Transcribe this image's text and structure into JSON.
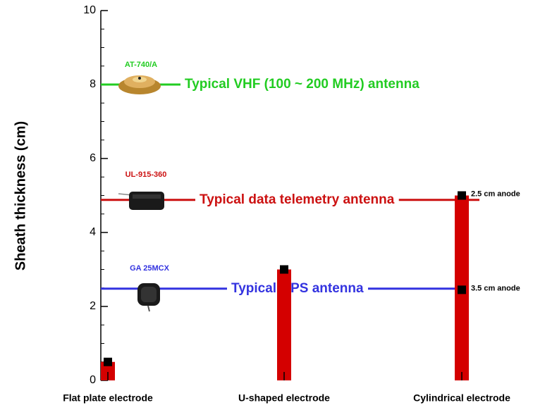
{
  "chart_data": {
    "type": "bar",
    "ylabel": "Sheath thickness (cm)",
    "categories": [
      "Flat plate electrode",
      "U-shaped electrode",
      "Cylindrical electrode"
    ],
    "values": [
      0.5,
      3.0,
      5.0
    ],
    "color": "#d40000",
    "marker_color": "#000000",
    "ylim": [
      0,
      10
    ],
    "yticks": [
      0,
      2,
      4,
      6,
      8,
      10
    ],
    "reference_lines": [
      {
        "label": "Typical VHF (100 ~ 200 MHz) antenna",
        "antenna": "AT-740/A",
        "value": 8.0,
        "color": "#22cc22"
      },
      {
        "label": "Typical data telemetry antenna",
        "antenna": "UL-915-360",
        "value": 4.88,
        "color": "#cc1111"
      },
      {
        "label": "Typical GPS antenna",
        "antenna": "GA 25MCX",
        "value": 2.48,
        "color": "#3333e0"
      }
    ],
    "annotations": [
      {
        "label": "2.5 cm anode",
        "value": 5.0
      },
      {
        "label": "3.5 cm anode",
        "value": 2.45
      }
    ]
  }
}
